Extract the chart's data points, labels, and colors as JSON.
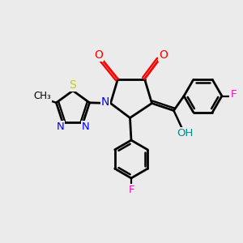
{
  "bg_color": "#EBEBEB",
  "bond_color": "#000000",
  "bond_width": 2.0,
  "colors": {
    "O": "#FF0000",
    "OH": "#008B8B",
    "N": "#0000FF",
    "S": "#CCCC00",
    "F": "#FF00CC",
    "C": "#000000"
  },
  "figsize": [
    3.0,
    3.0
  ],
  "dpi": 100
}
